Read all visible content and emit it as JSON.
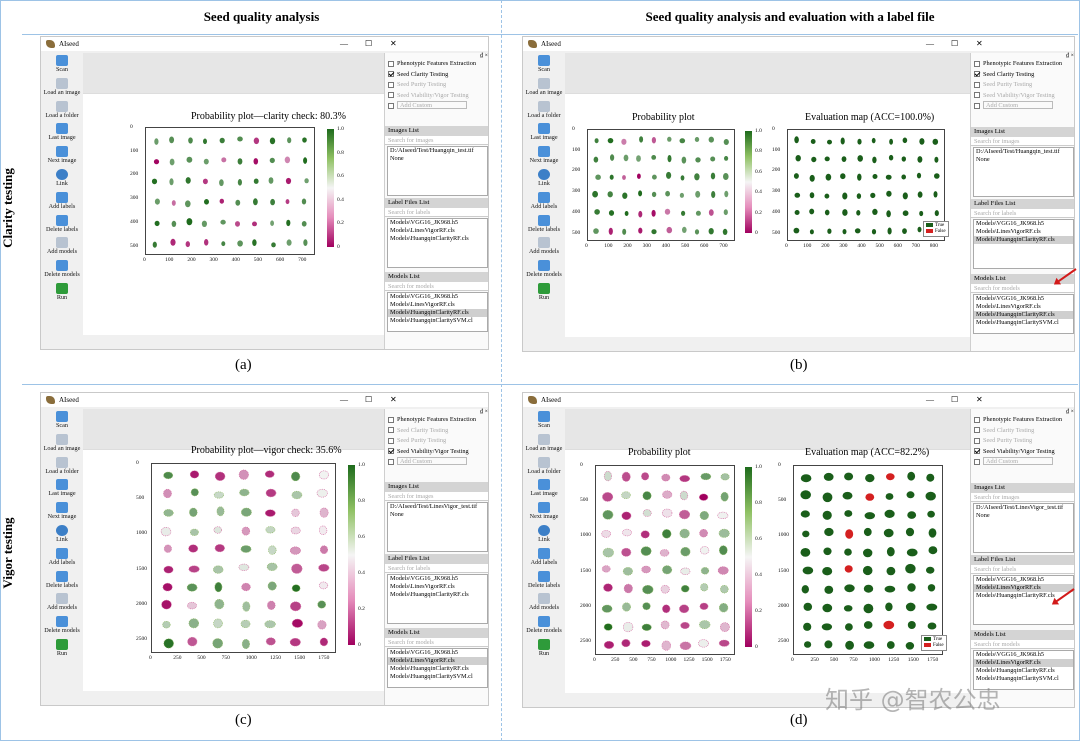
{
  "headers": {
    "left": "Seed quality analysis",
    "right": "Seed quality analysis and evaluation with a label file"
  },
  "row_labels": {
    "top": "Clarity testing",
    "bottom": "Vigor testing"
  },
  "captions": {
    "a": "(a)",
    "b": "(b)",
    "c": "(c)",
    "d": "(d)"
  },
  "app": {
    "title": "AIseed",
    "window_controls": [
      "—",
      "☐",
      "✕"
    ],
    "toolbar": [
      {
        "label": "Scan",
        "icon": "scan-icon"
      },
      {
        "label": "Load an image",
        "icon": "load-image-icon"
      },
      {
        "label": "Load a folder",
        "icon": "load-folder-icon"
      },
      {
        "label": "Last image",
        "icon": "arrow-left-icon"
      },
      {
        "label": "Next image",
        "icon": "arrow-right-icon"
      },
      {
        "label": "Link",
        "icon": "gear-icon"
      },
      {
        "label": "Add labels",
        "icon": "add-labels-icon"
      },
      {
        "label": "Delete labels",
        "icon": "delete-labels-icon"
      },
      {
        "label": "Add models",
        "icon": "add-models-icon"
      },
      {
        "label": "Delete models",
        "icon": "trash-icon"
      },
      {
        "label": "Run",
        "icon": "play-icon"
      }
    ],
    "checks": {
      "phenotypic": "Phenotypic Features Extraction",
      "clarity": "Seed Clarity Testing",
      "purity": "Seed Purity Testing",
      "vigor": "Seed Viability/Vigor Testing",
      "custom": "Add Custom"
    },
    "images_list": "Images List",
    "label_files_list": "Label Files List",
    "models_list": "Models List",
    "search_images": "Search for images",
    "search_labels": "Search for labels",
    "search_models": "Search for models",
    "none": "None",
    "label_files": [
      "Models\\VGG16_JK968.h5",
      "Models\\LinesVigorRF.cls",
      "Models\\HuangqinClarityRF.cls"
    ],
    "models": [
      "Models\\VGG16_JK968.h5",
      "Models\\LinesVigorRF.cls",
      "Models\\HuangqinClarityRF.cls",
      "Models\\HuangqinClaritySVM.cl"
    ],
    "dock_icons": "₫ ×"
  },
  "panels": {
    "a": {
      "image_path": "D:/AIseed/Test/Huangqin_test.tif",
      "plot_title": "Probability plot—clarity check: 80.3%",
      "y_ticks": [
        "0",
        "100",
        "200",
        "300",
        "400",
        "500"
      ],
      "x_ticks": [
        "0",
        "100",
        "200",
        "300",
        "400",
        "500",
        "600",
        "700"
      ],
      "cbar_ticks": [
        "1.0",
        "0.8",
        "0.6",
        "0.4",
        "0.2",
        "0"
      ]
    },
    "b": {
      "image_path": "D:/AIseed/Test/Huangqin_test.tif",
      "plot_title_1": "Probability plot",
      "plot_title_2": "Evaluation map (ACC=100.0%)",
      "y_ticks": [
        "0",
        "100",
        "200",
        "300",
        "400",
        "500"
      ],
      "x_ticks": [
        "0",
        "100",
        "200",
        "300",
        "400",
        "500",
        "600",
        "700"
      ],
      "x_ticks_2": [
        "0",
        "100",
        "200",
        "300",
        "400",
        "500",
        "600",
        "700",
        "800"
      ],
      "cbar_ticks": [
        "1.0",
        "0.8",
        "0.6",
        "0.4",
        "0.2",
        "0"
      ],
      "legend": [
        "True",
        "False"
      ]
    },
    "c": {
      "image_path": "D:/AIseed/Test/LinesVigor_test.tif",
      "plot_title": "Probability plot—vigor check: 35.6%",
      "y_ticks": [
        "0",
        "500",
        "1000",
        "1500",
        "2000",
        "2500"
      ],
      "x_ticks": [
        "0",
        "250",
        "500",
        "750",
        "1000",
        "1250",
        "1500",
        "1750"
      ],
      "cbar_ticks": [
        "1.0",
        "0.8",
        "0.6",
        "0.4",
        "0.2",
        "0"
      ]
    },
    "d": {
      "image_path": "D:/AIseed/Test/LinesVigor_test.tif",
      "plot_title_1": "Probability plot",
      "plot_title_2": "Evaluation map (ACC=82.2%)",
      "y_ticks": [
        "0",
        "500",
        "1000",
        "1500",
        "2000",
        "2500"
      ],
      "x_ticks": [
        "0",
        "250",
        "500",
        "750",
        "1000",
        "1250",
        "1500",
        "1750"
      ],
      "cbar_ticks": [
        "1.0",
        "0.8",
        "0.6",
        "0.4",
        "0.2",
        "0"
      ],
      "legend": [
        "True",
        "False"
      ]
    }
  },
  "watermark": "知乎 @智农公忠",
  "colors": {
    "true": "#1a5e1a",
    "false": "#d42020",
    "accent_border": "#9dc3e6"
  }
}
